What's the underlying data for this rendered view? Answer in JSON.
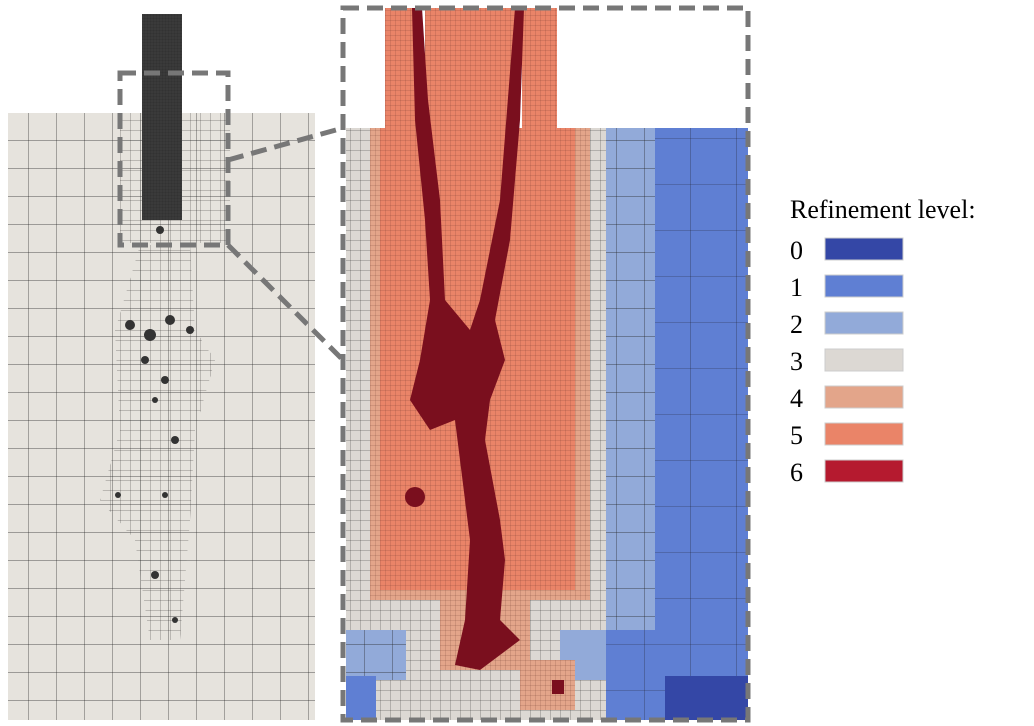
{
  "legend": {
    "title": "Refinement level:",
    "items": [
      {
        "label": "0",
        "color": "#3447a6"
      },
      {
        "label": "1",
        "color": "#5f7fd3"
      },
      {
        "label": "2",
        "color": "#92aad9"
      },
      {
        "label": "3",
        "color": "#dcd8d3"
      },
      {
        "label": "4",
        "color": "#e3a58a"
      },
      {
        "label": "5",
        "color": "#ea8468"
      },
      {
        "label": "6",
        "color": "#b51a2f"
      }
    ]
  }
}
